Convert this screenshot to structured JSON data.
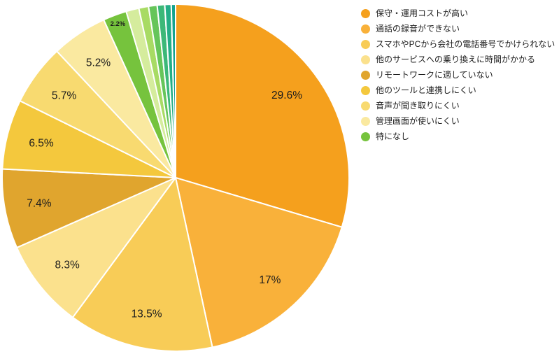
{
  "page": {
    "background": "#ffffff"
  },
  "chart_data": {
    "type": "pie",
    "title": "",
    "unit": "%",
    "direction": "clockwise",
    "start_angle_deg": 0,
    "legend_position": "top-right",
    "stroke_color": "#ffffff",
    "label_color": "#1c1c1c",
    "slices": [
      {
        "label": "保守・運用コストが高い",
        "value": 29.6,
        "pct_label": "29.6%",
        "color": "#F5A01D",
        "in_legend": true
      },
      {
        "label": "通話の録音ができない",
        "value": 17,
        "pct_label": "17%",
        "color": "#F9B13A",
        "in_legend": true
      },
      {
        "label": "スマホやPCから会社の電話番号でかけられない",
        "value": 13.5,
        "pct_label": "13.5%",
        "color": "#F8CC57",
        "in_legend": true
      },
      {
        "label": "他のサービスへの乗り換えに時間がかかる",
        "value": 8.3,
        "pct_label": "8.3%",
        "color": "#FBE18D",
        "in_legend": true
      },
      {
        "label": "リモートワークに適していない",
        "value": 7.4,
        "pct_label": "7.4%",
        "color": "#E0A52E",
        "in_legend": true
      },
      {
        "label": "他のツールと連携しにくい",
        "value": 6.5,
        "pct_label": "6.5%",
        "color": "#F4C83D",
        "in_legend": true
      },
      {
        "label": "音声が聞き取りにくい",
        "value": 5.7,
        "pct_label": "5.7%",
        "color": "#F8DA70",
        "in_legend": true
      },
      {
        "label": "管理画面が使いにくい",
        "value": 5.2,
        "pct_label": "5.2%",
        "color": "#FAE9A0",
        "in_legend": true
      },
      {
        "label": "特になし",
        "value": 2.2,
        "pct_label": "2.2%",
        "color": "#76C33D",
        "in_legend": true
      },
      {
        "label": "",
        "value": 1.2,
        "pct_label": "",
        "color": "#D5EC9D",
        "in_legend": false
      },
      {
        "label": "",
        "value": 0.9,
        "pct_label": "",
        "color": "#A8DB64",
        "in_legend": false
      },
      {
        "label": "",
        "value": 0.8,
        "pct_label": "",
        "color": "#66C55A",
        "in_legend": false
      },
      {
        "label": "",
        "value": 0.7,
        "pct_label": "",
        "color": "#3CB878",
        "in_legend": false
      },
      {
        "label": "",
        "value": 0.6,
        "pct_label": "",
        "color": "#24AE86",
        "in_legend": false
      },
      {
        "label": "",
        "value": 0.4,
        "pct_label": "",
        "color": "#14A38F",
        "in_legend": false
      }
    ]
  }
}
